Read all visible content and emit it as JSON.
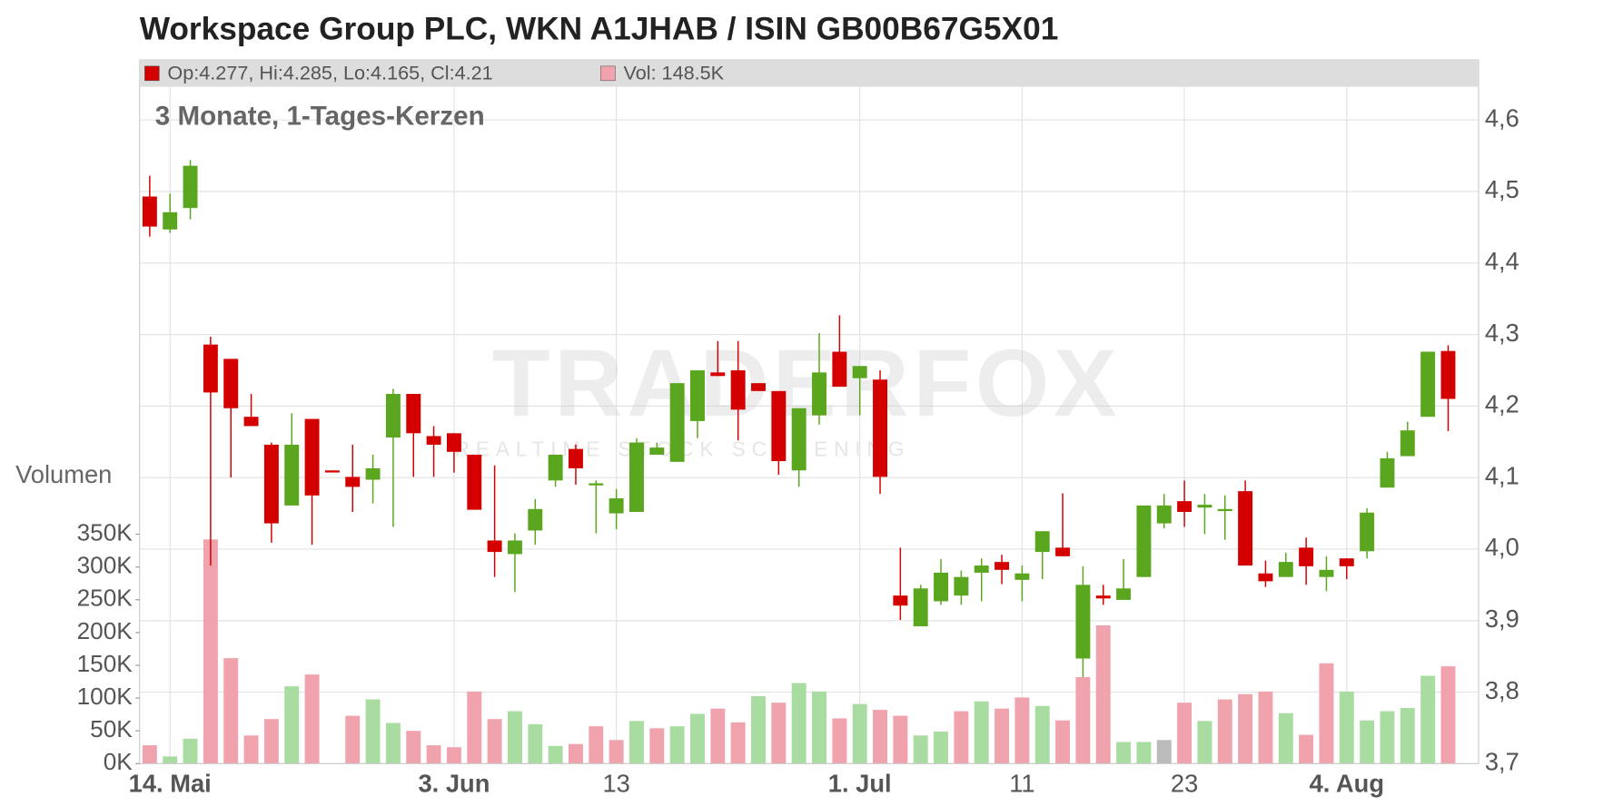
{
  "chart_data": {
    "type": "candlestick",
    "title": "Workspace Group PLC, WKN A1JHAB / ISIN GB00B67G5X01",
    "subtitle": "3 Monate, 1-Tages-Kerzen",
    "legend_price": "Op:4.277, Hi:4.285, Lo:4.165, Cl:4.21",
    "legend_volume": "Vol: 148.5K",
    "volume_label": "Volumen",
    "watermark": "TRADERFOX",
    "watermark_sub": "REALTIME STOCK SCREENING",
    "categories": [
      null,
      "14. Mai",
      null,
      null,
      null,
      null,
      null,
      null,
      null,
      null,
      null,
      null,
      null,
      null,
      null,
      "3. Jun",
      null,
      null,
      null,
      null,
      null,
      null,
      null,
      "13",
      null,
      null,
      null,
      null,
      null,
      null,
      null,
      null,
      null,
      null,
      null,
      "1. Jul",
      null,
      null,
      null,
      null,
      null,
      null,
      null,
      "11",
      null,
      null,
      null,
      null,
      null,
      null,
      null,
      "23",
      null,
      null,
      null,
      null,
      null,
      null,
      null,
      "4. Aug",
      null,
      null,
      null,
      null,
      null
    ],
    "open": [
      4.493,
      4.447,
      4.477,
      4.286,
      4.266,
      4.185,
      4.146,
      4.061,
      4.182,
      4.11,
      4.101,
      4.097,
      4.156,
      4.217,
      4.158,
      4.162,
      4.132,
      4.012,
      3.993,
      4.026,
      4.096,
      4.14,
      4.091,
      4.05,
      4.052,
      4.132,
      4.122,
      4.179,
      4.247,
      4.25,
      4.232,
      4.221,
      4.11,
      4.187,
      4.276,
      4.239,
      4.237,
      3.935,
      3.892,
      3.927,
      3.935,
      3.967,
      3.982,
      3.957,
      3.996,
      4.002,
      3.847,
      3.935,
      3.929,
      3.961,
      4.036,
      4.067,
      4.058,
      4.054,
      4.081,
      3.966,
      3.961,
      4.002,
      3.961,
      3.987,
      3.997,
      4.086,
      4.13,
      4.185,
      4.277
    ],
    "high": [
      4.522,
      4.497,
      4.544,
      4.297,
      4.266,
      4.217,
      4.149,
      4.19,
      4.182,
      4.11,
      4.146,
      4.132,
      4.224,
      4.217,
      4.172,
      4.162,
      4.132,
      4.117,
      4.022,
      4.07,
      4.132,
      4.146,
      4.096,
      4.084,
      4.155,
      4.149,
      4.232,
      4.25,
      4.291,
      4.291,
      4.232,
      4.221,
      4.197,
      4.302,
      4.327,
      4.256,
      4.25,
      4.002,
      3.95,
      3.986,
      3.97,
      3.987,
      3.992,
      3.977,
      4.025,
      4.078,
      3.976,
      3.95,
      3.986,
      4.061,
      4.077,
      4.096,
      4.077,
      4.075,
      4.096,
      3.984,
      3.995,
      4.016,
      3.99,
      3.987,
      4.057,
      4.136,
      4.178,
      4.276,
      4.285
    ],
    "low": [
      4.437,
      4.442,
      4.461,
      3.977,
      4.1,
      4.172,
      4.009,
      4.061,
      4.006,
      4.109,
      4.052,
      4.064,
      4.031,
      4.101,
      4.101,
      4.107,
      4.055,
      3.961,
      3.94,
      4.006,
      4.087,
      4.09,
      4.022,
      4.028,
      4.052,
      4.132,
      4.122,
      4.155,
      4.242,
      4.152,
      4.221,
      4.104,
      4.087,
      4.174,
      4.227,
      4.187,
      4.077,
      3.901,
      3.892,
      3.922,
      3.922,
      3.927,
      3.951,
      3.927,
      3.958,
      3.99,
      3.821,
      3.922,
      3.929,
      3.961,
      4.029,
      4.031,
      4.021,
      4.013,
      3.977,
      3.947,
      3.961,
      3.95,
      3.941,
      3.958,
      3.987,
      4.086,
      4.13,
      4.185,
      4.165
    ],
    "close": [
      4.451,
      4.471,
      4.536,
      4.219,
      4.197,
      4.172,
      4.036,
      4.146,
      4.075,
      4.109,
      4.087,
      4.113,
      4.217,
      4.162,
      4.146,
      4.136,
      4.055,
      3.996,
      4.012,
      4.056,
      4.132,
      4.113,
      4.092,
      4.071,
      4.149,
      4.142,
      4.232,
      4.25,
      4.242,
      4.195,
      4.221,
      4.123,
      4.197,
      4.247,
      4.227,
      4.256,
      4.101,
      3.921,
      3.945,
      3.967,
      3.961,
      3.977,
      3.971,
      3.966,
      4.025,
      3.99,
      3.95,
      3.931,
      3.945,
      4.061,
      4.061,
      4.052,
      4.062,
      4.056,
      3.977,
      3.955,
      3.982,
      3.976,
      3.971,
      3.976,
      4.051,
      4.127,
      4.166,
      4.276,
      4.21
    ],
    "volume": [
      28000,
      11000,
      38000,
      342000,
      161000,
      43000,
      68000,
      118000,
      136000,
      null,
      73000,
      98000,
      62000,
      50000,
      28000,
      25000,
      110000,
      68000,
      80000,
      60000,
      27000,
      30000,
      57000,
      36000,
      65000,
      54000,
      57000,
      76000,
      84000,
      63000,
      103000,
      93000,
      123000,
      110000,
      69000,
      91000,
      82000,
      73000,
      43000,
      49000,
      80000,
      95000,
      84000,
      101000,
      88000,
      66000,
      132000,
      211000,
      33000,
      33000,
      36000,
      93000,
      65000,
      98000,
      106000,
      110000,
      77000,
      44000,
      153000,
      110000,
      66000,
      80000,
      85000,
      134000,
      148500
    ],
    "volume_colors": [
      "#f0a3ad",
      "#a8dca0",
      "#a8dca0",
      "#f0a3ad",
      "#f0a3ad",
      "#f0a3ad",
      "#f0a3ad",
      "#a8dca0",
      "#f0a3ad",
      null,
      "#f0a3ad",
      "#a8dca0",
      "#a8dca0",
      "#f0a3ad",
      "#f0a3ad",
      "#f0a3ad",
      "#f0a3ad",
      "#f0a3ad",
      "#a8dca0",
      "#a8dca0",
      "#a8dca0",
      "#f0a3ad",
      "#f0a3ad",
      "#f0a3ad",
      "#a8dca0",
      "#f0a3ad",
      "#a8dca0",
      "#a8dca0",
      "#f0a3ad",
      "#f0a3ad",
      "#a8dca0",
      "#f0a3ad",
      "#a8dca0",
      "#a8dca0",
      "#f0a3ad",
      "#a8dca0",
      "#f0a3ad",
      "#f0a3ad",
      "#a8dca0",
      "#a8dca0",
      "#f0a3ad",
      "#a8dca0",
      "#f0a3ad",
      "#f0a3ad",
      "#a8dca0",
      "#f0a3ad",
      "#f0a3ad",
      "#f0a3ad",
      "#a8dca0",
      "#a8dca0",
      "#bbbbbb",
      "#f0a3ad",
      "#a8dca0",
      "#f0a3ad",
      "#f0a3ad",
      "#f0a3ad",
      "#a8dca0",
      "#f0a3ad",
      "#f0a3ad",
      "#a8dca0",
      "#a8dca0",
      "#a8dca0",
      "#a8dca0",
      "#a8dca0",
      "#f0a3ad"
    ],
    "up_color": "#5aa61e",
    "down_color": "#d40000",
    "volume_legend_color": "#f0a3ad",
    "ylim": [
      3.7,
      4.684
    ],
    "yticks": [
      {
        "value": 3.7,
        "label": "3,7"
      },
      {
        "value": 3.8,
        "label": "3,8"
      },
      {
        "value": 3.9,
        "label": "3,9"
      },
      {
        "value": 4.0,
        "label": "4,0"
      },
      {
        "value": 4.1,
        "label": "4,1"
      },
      {
        "value": 4.2,
        "label": "4,2"
      },
      {
        "value": 4.3,
        "label": "4,3"
      },
      {
        "value": 4.4,
        "label": "4,4"
      },
      {
        "value": 4.5,
        "label": "4,5"
      },
      {
        "value": 4.6,
        "label": "4,6"
      }
    ],
    "volume_lim": [
      0,
      350000
    ],
    "volume_ticks": [
      {
        "value": 0,
        "label": "0K"
      },
      {
        "value": 50000,
        "label": "50K"
      },
      {
        "value": 100000,
        "label": "100K"
      },
      {
        "value": 150000,
        "label": "150K"
      },
      {
        "value": 200000,
        "label": "200K"
      },
      {
        "value": 250000,
        "label": "250K"
      },
      {
        "value": 300000,
        "label": "300K"
      },
      {
        "value": 350000,
        "label": "350K"
      }
    ],
    "grid": true
  }
}
